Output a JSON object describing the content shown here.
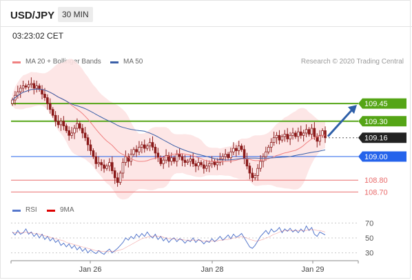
{
  "header": {
    "pair": "USD/JPY",
    "timeframe": "30 MIN",
    "timestamp": "03:23:02 CET"
  },
  "legend": {
    "ma20_label": "MA 20 + Bollinger Bands",
    "ma50_label": "MA 50",
    "credit": "Research © 2020 Trading Central",
    "rsi_label": "RSI",
    "rsi_ma_label": "9MA"
  },
  "colors": {
    "ma20": "#f08080",
    "ma50": "#3a5fa8",
    "bands_fill": "#fde3e3",
    "resistance": "#55a516",
    "support_blue": "#2563eb",
    "support_red": "#e96b6b",
    "candle": "#8b1a1a",
    "current": "#222222",
    "rsi": "#5577cc",
    "rsi_ma": "#dd0000"
  },
  "chart_data": [
    {
      "type": "candlestick",
      "title": "USD/JPY",
      "x_labels": [
        "Jan 26",
        "Jan 28",
        "Jan 29"
      ],
      "ylim": [
        108.62,
        109.72
      ],
      "levels": [
        {
          "value": 109.45,
          "label": "109.45",
          "kind": "resistance"
        },
        {
          "value": 109.3,
          "label": "109.30",
          "kind": "resistance"
        },
        {
          "value": 109.16,
          "label": "109.16",
          "kind": "current"
        },
        {
          "value": 109.0,
          "label": "109.00",
          "kind": "pivot"
        },
        {
          "value": 108.8,
          "label": "108.80",
          "kind": "support"
        },
        {
          "value": 108.7,
          "label": "108.70",
          "kind": "support"
        }
      ],
      "arrow_target": 109.45,
      "series": [
        {
          "name": "MA 20 + Bollinger Bands"
        },
        {
          "name": "MA 50"
        }
      ],
      "closes": [
        109.48,
        109.52,
        109.55,
        109.58,
        109.6,
        109.59,
        109.61,
        109.62,
        109.58,
        109.6,
        109.57,
        109.53,
        109.5,
        109.45,
        109.4,
        109.35,
        109.3,
        109.27,
        109.3,
        109.26,
        109.22,
        109.18,
        109.2,
        109.24,
        109.28,
        109.24,
        109.2,
        109.16,
        109.1,
        109.05,
        109.0,
        108.94,
        108.95,
        108.93,
        108.9,
        108.92,
        108.95,
        108.88,
        108.82,
        108.78,
        108.86,
        108.95,
        109.0,
        108.96,
        109.02,
        109.06,
        109.04,
        109.08,
        109.1,
        109.07,
        109.09,
        109.12,
        109.08,
        109.03,
        108.99,
        108.94,
        108.97,
        109.01,
        108.96,
        108.99,
        108.96,
        109.02,
        109.0,
        108.97,
        108.95,
        108.96,
        108.98,
        108.94,
        108.92,
        108.95,
        108.93,
        108.9,
        108.92,
        108.94,
        108.96,
        108.93,
        108.95,
        108.98,
        109.0,
        109.02,
        108.99,
        109.04,
        109.07,
        109.05,
        109.09,
        109.06,
        108.98,
        108.92,
        108.86,
        108.82,
        108.84,
        108.9,
        108.96,
        109.0,
        109.04,
        109.08,
        109.12,
        109.16,
        109.18,
        109.14,
        109.17,
        109.19,
        109.15,
        109.18,
        109.2,
        109.17,
        109.21,
        109.18,
        109.2,
        109.23,
        109.19,
        109.24,
        109.17,
        109.13,
        109.18,
        109.22,
        109.16
      ],
      "rsi": {
        "ylim": [
          25,
          75
        ],
        "ticks": [
          70,
          50,
          30
        ],
        "values": [
          58,
          54,
          60,
          55,
          57,
          62,
          55,
          58,
          52,
          56,
          50,
          55,
          48,
          52,
          46,
          50,
          44,
          47,
          40,
          43,
          38,
          42,
          36,
          40,
          34,
          38,
          32,
          36,
          30,
          34,
          31,
          29,
          33,
          30,
          28,
          32,
          35,
          30,
          33,
          36,
          40,
          44,
          50,
          47,
          52,
          49,
          55,
          51,
          56,
          52,
          58,
          53,
          50,
          55,
          48,
          52,
          46,
          50,
          44,
          48,
          50,
          45,
          49,
          47,
          43,
          47,
          45,
          50,
          44,
          48,
          46,
          42,
          46,
          44,
          49,
          45,
          48,
          52,
          47,
          50,
          54,
          49,
          55,
          51,
          53,
          56,
          50,
          44,
          38,
          36,
          40,
          46,
          52,
          56,
          60,
          55,
          62,
          58,
          60,
          64,
          57,
          62,
          59,
          63,
          58,
          61,
          57,
          62,
          58,
          66,
          60,
          64,
          55,
          52,
          58,
          56,
          54
        ],
        "ma": [
          57,
          57,
          57,
          57,
          57,
          58,
          57,
          57,
          56,
          56,
          55,
          54,
          53,
          52,
          51,
          50,
          49,
          48,
          47,
          46,
          44,
          43,
          42,
          41,
          40,
          39,
          38,
          37,
          36,
          35,
          34,
          33,
          33,
          32,
          32,
          32,
          32,
          32,
          32,
          33,
          34,
          35,
          37,
          39,
          41,
          43,
          45,
          47,
          49,
          50,
          51,
          52,
          52,
          53,
          52,
          52,
          51,
          50,
          49,
          49,
          49,
          48,
          48,
          48,
          47,
          47,
          47,
          47,
          47,
          47,
          46,
          46,
          46,
          46,
          46,
          46,
          46,
          47,
          47,
          48,
          48,
          49,
          50,
          50,
          51,
          52,
          51,
          50,
          48,
          47,
          46,
          46,
          47,
          48,
          50,
          51,
          53,
          55,
          56,
          58,
          59,
          60,
          60,
          60,
          60,
          60,
          60,
          60,
          60,
          60,
          61,
          61,
          61,
          60,
          60,
          59,
          58
        ],
        "x_labels": [
          "Jan 26",
          "Jan 28",
          "Jan 29"
        ]
      }
    }
  ]
}
